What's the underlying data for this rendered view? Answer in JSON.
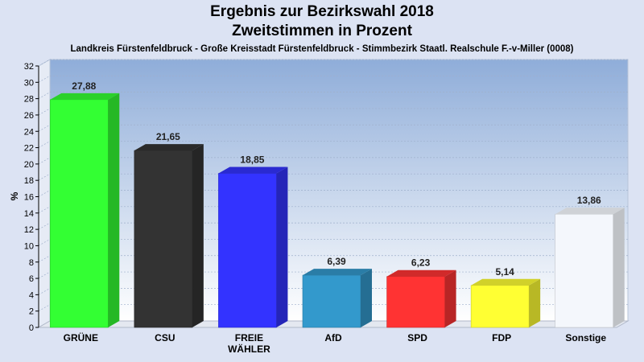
{
  "chart_data": {
    "type": "bar",
    "title": "Ergebnis zur Bezirkswahl 2018",
    "subtitle_line": "Zweitstimmen in Prozent",
    "subtitle": "Landkreis Fürstenfeldbruck - Große Kreisstadt Fürstenfeldbruck - Stimmbezirk Staatl. Realschule F.-v-Miller (0008)",
    "ylabel": "%",
    "xlabel": "",
    "ylim": [
      0,
      32
    ],
    "yticks": [
      "0",
      "2",
      "4",
      "6",
      "8",
      "10",
      "12",
      "14",
      "16",
      "18",
      "20",
      "22",
      "24",
      "26",
      "28",
      "30",
      "32"
    ],
    "grid": true,
    "legend": "none",
    "categories": [
      [
        "GRÜNE"
      ],
      [
        "CSU"
      ],
      [
        "FREIE",
        "WÄHLER"
      ],
      [
        "AfD"
      ],
      [
        "SPD"
      ],
      [
        "FDP"
      ],
      [
        "Sonstige"
      ]
    ],
    "values": [
      27.88,
      21.65,
      18.85,
      6.39,
      6.23,
      5.14,
      13.86
    ],
    "value_labels": [
      "27,88",
      "21,65",
      "18,85",
      "6,39",
      "6,23",
      "5,14",
      "13,86"
    ],
    "colors": [
      "#33ff33",
      "#333333",
      "#3333ff",
      "#3399cc",
      "#ff3333",
      "#ffff33",
      "#f4f7fc"
    ]
  }
}
